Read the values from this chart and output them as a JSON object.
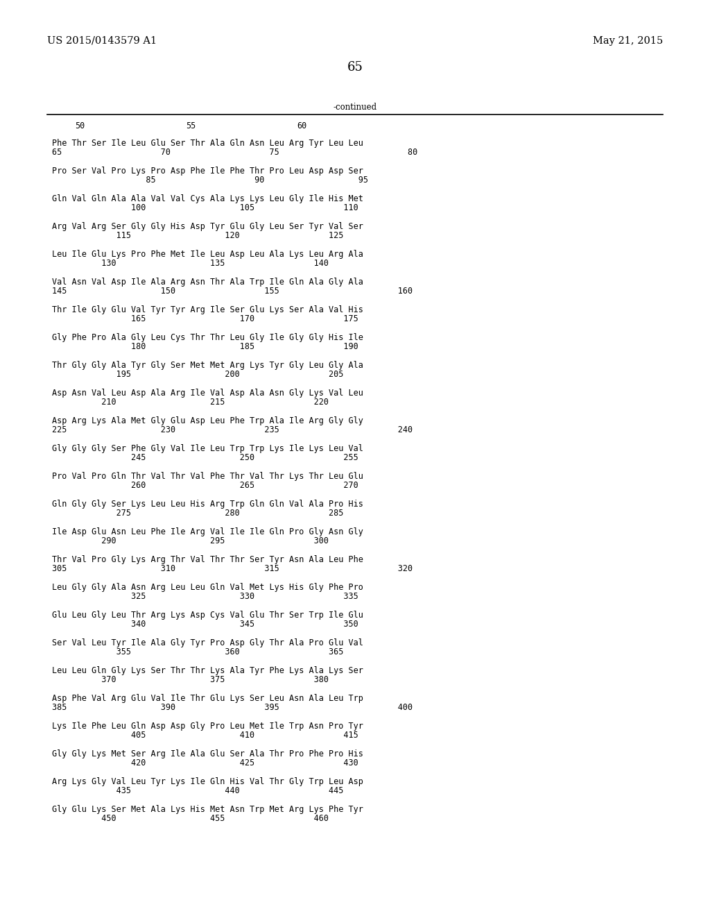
{
  "header_left": "US 2015/0143579 A1",
  "header_right": "May 21, 2015",
  "page_number": "65",
  "continued_label": "-continued",
  "background_color": "#ffffff",
  "text_color": "#000000",
  "sequences": [
    [
      "Phe Thr Ser Ile Leu Glu Ser Thr Ala Gln Asn Leu Arg Tyr Leu Leu",
      "65                    70                    75                          80"
    ],
    [
      "Pro Ser Val Pro Lys Pro Asp Phe Ile Phe Thr Pro Leu Asp Asp Ser",
      "                   85                    90                   95"
    ],
    [
      "Gln Val Gln Ala Ala Val Val Cys Ala Lys Lys Leu Gly Ile His Met",
      "                100                   105                  110"
    ],
    [
      "Arg Val Arg Ser Gly Gly His Asp Tyr Glu Gly Leu Ser Tyr Val Ser",
      "             115                   120                  125"
    ],
    [
      "Leu Ile Glu Lys Pro Phe Met Ile Leu Asp Leu Ala Lys Leu Arg Ala",
      "          130                   135                  140"
    ],
    [
      "Val Asn Val Asp Ile Ala Arg Asn Thr Ala Trp Ile Gln Ala Gly Ala",
      "145                   150                  155                        160"
    ],
    [
      "Thr Ile Gly Glu Val Tyr Tyr Arg Ile Ser Glu Lys Ser Ala Val His",
      "                165                   170                  175"
    ],
    [
      "Gly Phe Pro Ala Gly Leu Cys Thr Thr Leu Gly Ile Gly Gly His Ile",
      "                180                   185                  190"
    ],
    [
      "Thr Gly Gly Ala Tyr Gly Ser Met Met Arg Lys Tyr Gly Leu Gly Ala",
      "             195                   200                  205"
    ],
    [
      "Asp Asn Val Leu Asp Ala Arg Ile Val Asp Ala Asn Gly Lys Val Leu",
      "          210                   215                  220"
    ],
    [
      "Asp Arg Lys Ala Met Gly Glu Asp Leu Phe Trp Ala Ile Arg Gly Gly",
      "225                   230                  235                        240"
    ],
    [
      "Gly Gly Gly Ser Phe Gly Val Ile Leu Trp Trp Lys Ile Lys Leu Val",
      "                245                   250                  255"
    ],
    [
      "Pro Val Pro Gln Thr Val Thr Val Phe Thr Val Thr Lys Thr Leu Glu",
      "                260                   265                  270"
    ],
    [
      "Gln Gly Gly Ser Lys Leu Leu His Arg Trp Gln Gln Val Ala Pro His",
      "             275                   280                  285"
    ],
    [
      "Ile Asp Glu Asn Leu Phe Ile Arg Val Ile Ile Gln Pro Gly Asn Gly",
      "          290                   295                  300"
    ],
    [
      "Thr Val Pro Gly Lys Arg Thr Val Thr Thr Ser Tyr Asn Ala Leu Phe",
      "305                   310                  315                        320"
    ],
    [
      "Leu Gly Gly Ala Asn Arg Leu Leu Gln Val Met Lys His Gly Phe Pro",
      "                325                   330                  335"
    ],
    [
      "Glu Leu Gly Leu Thr Arg Lys Asp Cys Val Glu Thr Ser Trp Ile Glu",
      "                340                   345                  350"
    ],
    [
      "Ser Val Leu Tyr Ile Ala Gly Tyr Pro Asp Gly Thr Ala Pro Glu Val",
      "             355                   360                  365"
    ],
    [
      "Leu Leu Gln Gly Lys Ser Thr Thr Lys Ala Tyr Phe Lys Ala Lys Ser",
      "          370                   375                  380"
    ],
    [
      "Asp Phe Val Arg Glu Val Ile Thr Glu Lys Ser Leu Asn Ala Leu Trp",
      "385                   390                  395                        400"
    ],
    [
      "Lys Ile Phe Leu Gln Asp Asp Gly Pro Leu Met Ile Trp Asn Pro Tyr",
      "                405                   410                  415"
    ],
    [
      "Gly Gly Lys Met Ser Arg Ile Ala Glu Ser Ala Thr Pro Phe Pro His",
      "                420                   425                  430"
    ],
    [
      "Arg Lys Gly Val Leu Tyr Lys Ile Gln His Val Thr Gly Trp Leu Asp",
      "             435                   440                  445"
    ],
    [
      "Gly Glu Lys Ser Met Ala Lys His Met Asn Trp Met Arg Lys Phe Tyr",
      "          450                   455                  460"
    ]
  ]
}
